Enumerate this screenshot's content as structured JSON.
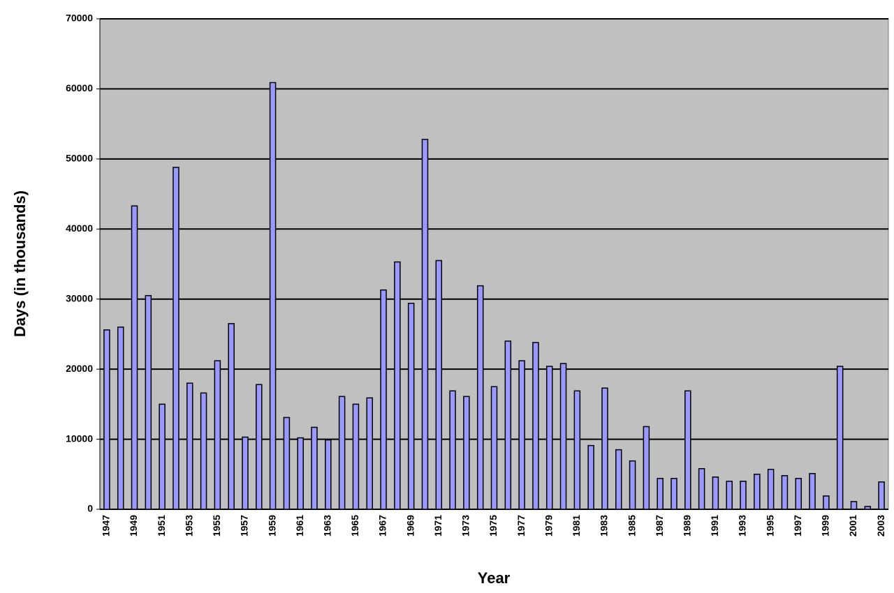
{
  "chart_data": {
    "type": "bar",
    "x_label": "Year",
    "y_label": "Days (in thousands)",
    "categories": [
      "1947",
      null,
      "1949",
      null,
      "1951",
      null,
      "1953",
      null,
      "1955",
      null,
      "1957",
      null,
      "1959",
      null,
      "1961",
      null,
      "1963",
      null,
      "1965",
      null,
      "1967",
      null,
      "1969",
      null,
      "1971",
      null,
      "1973",
      null,
      "1975",
      null,
      "1977",
      null,
      "1979",
      null,
      "1981",
      null,
      "1983",
      null,
      "1985",
      null,
      "1987",
      null,
      "1989",
      null,
      "1991",
      null,
      "1993",
      null,
      "1995",
      null,
      "1997",
      null,
      "1999",
      null,
      "2001",
      null,
      "2003"
    ],
    "values": [
      25600,
      26000,
      43300,
      30500,
      15000,
      48800,
      18000,
      16600,
      21200,
      26500,
      10300,
      17800,
      60900,
      13100,
      10200,
      11700,
      9900,
      16100,
      15000,
      15900,
      31300,
      35300,
      29400,
      52800,
      35500,
      16900,
      16100,
      31900,
      17500,
      24000,
      21200,
      23800,
      20400,
      20800,
      16900,
      9100,
      17300,
      8500,
      6900,
      11800,
      4400,
      4400,
      16900,
      5800,
      4600,
      4000,
      4000,
      5000,
      5700,
      4800,
      4400,
      5100,
      1900,
      20400,
      1100,
      400,
      3900
    ],
    "color": "#9999ff",
    "ylim": [
      0,
      70000
    ],
    "yticks": [
      0,
      10000,
      20000,
      30000,
      40000,
      50000,
      60000,
      70000
    ],
    "grid": true
  }
}
